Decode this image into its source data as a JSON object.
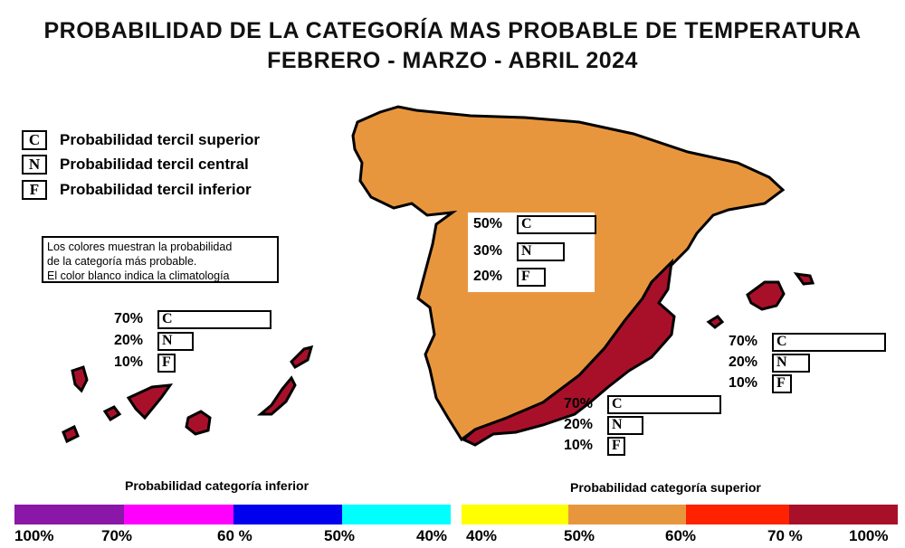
{
  "title": {
    "line1": "PROBABILIDAD DE LA CATEGORÍA MAS PROBABLE DE TEMPERATURA",
    "line2": "FEBRERO - MARZO - ABRIL 2024"
  },
  "legend": [
    {
      "letter": "C",
      "label": "Probabilidad  tercil superior"
    },
    {
      "letter": "N",
      "label": "Probabilidad  tercil central"
    },
    {
      "letter": "F",
      "label": "Probabilidad  tercil inferior"
    }
  ],
  "note": {
    "line1": "Los colores muestran la probabilidad",
    "line2": "de la categoría más probable.",
    "line3": "El color blanco indica la climatología"
  },
  "regions": [
    {
      "name": "Peninsula (centro y norte)",
      "c": "50%",
      "n": "30%",
      "f": "20%",
      "color": "#e8963e"
    },
    {
      "name": "Canarias",
      "c": "70%",
      "n": "20%",
      "f": "10%",
      "color": "#a8102a"
    },
    {
      "name": "Baleares",
      "c": "70%",
      "n": "20%",
      "f": "10%",
      "color": "#a8102a"
    },
    {
      "name": "Sureste",
      "c": "70%",
      "n": "20%",
      "f": "10%",
      "color": "#a8102a"
    }
  ],
  "scale_inferior": {
    "title": "Probabilidad categoría inferior",
    "colors": [
      "#8a17a8",
      "#ff00ff",
      "#0000ee",
      "#00ffff"
    ],
    "labels": [
      "100%",
      "70%",
      "60 %",
      "50%",
      "40%"
    ]
  },
  "scale_superior": {
    "title": "Probabilidad categoría superior",
    "colors": [
      "#ffff00",
      "#e8963e",
      "#ff2200",
      "#a8102a"
    ],
    "labels": [
      "40%",
      "50%",
      "60%",
      "70 %",
      "100%"
    ]
  }
}
